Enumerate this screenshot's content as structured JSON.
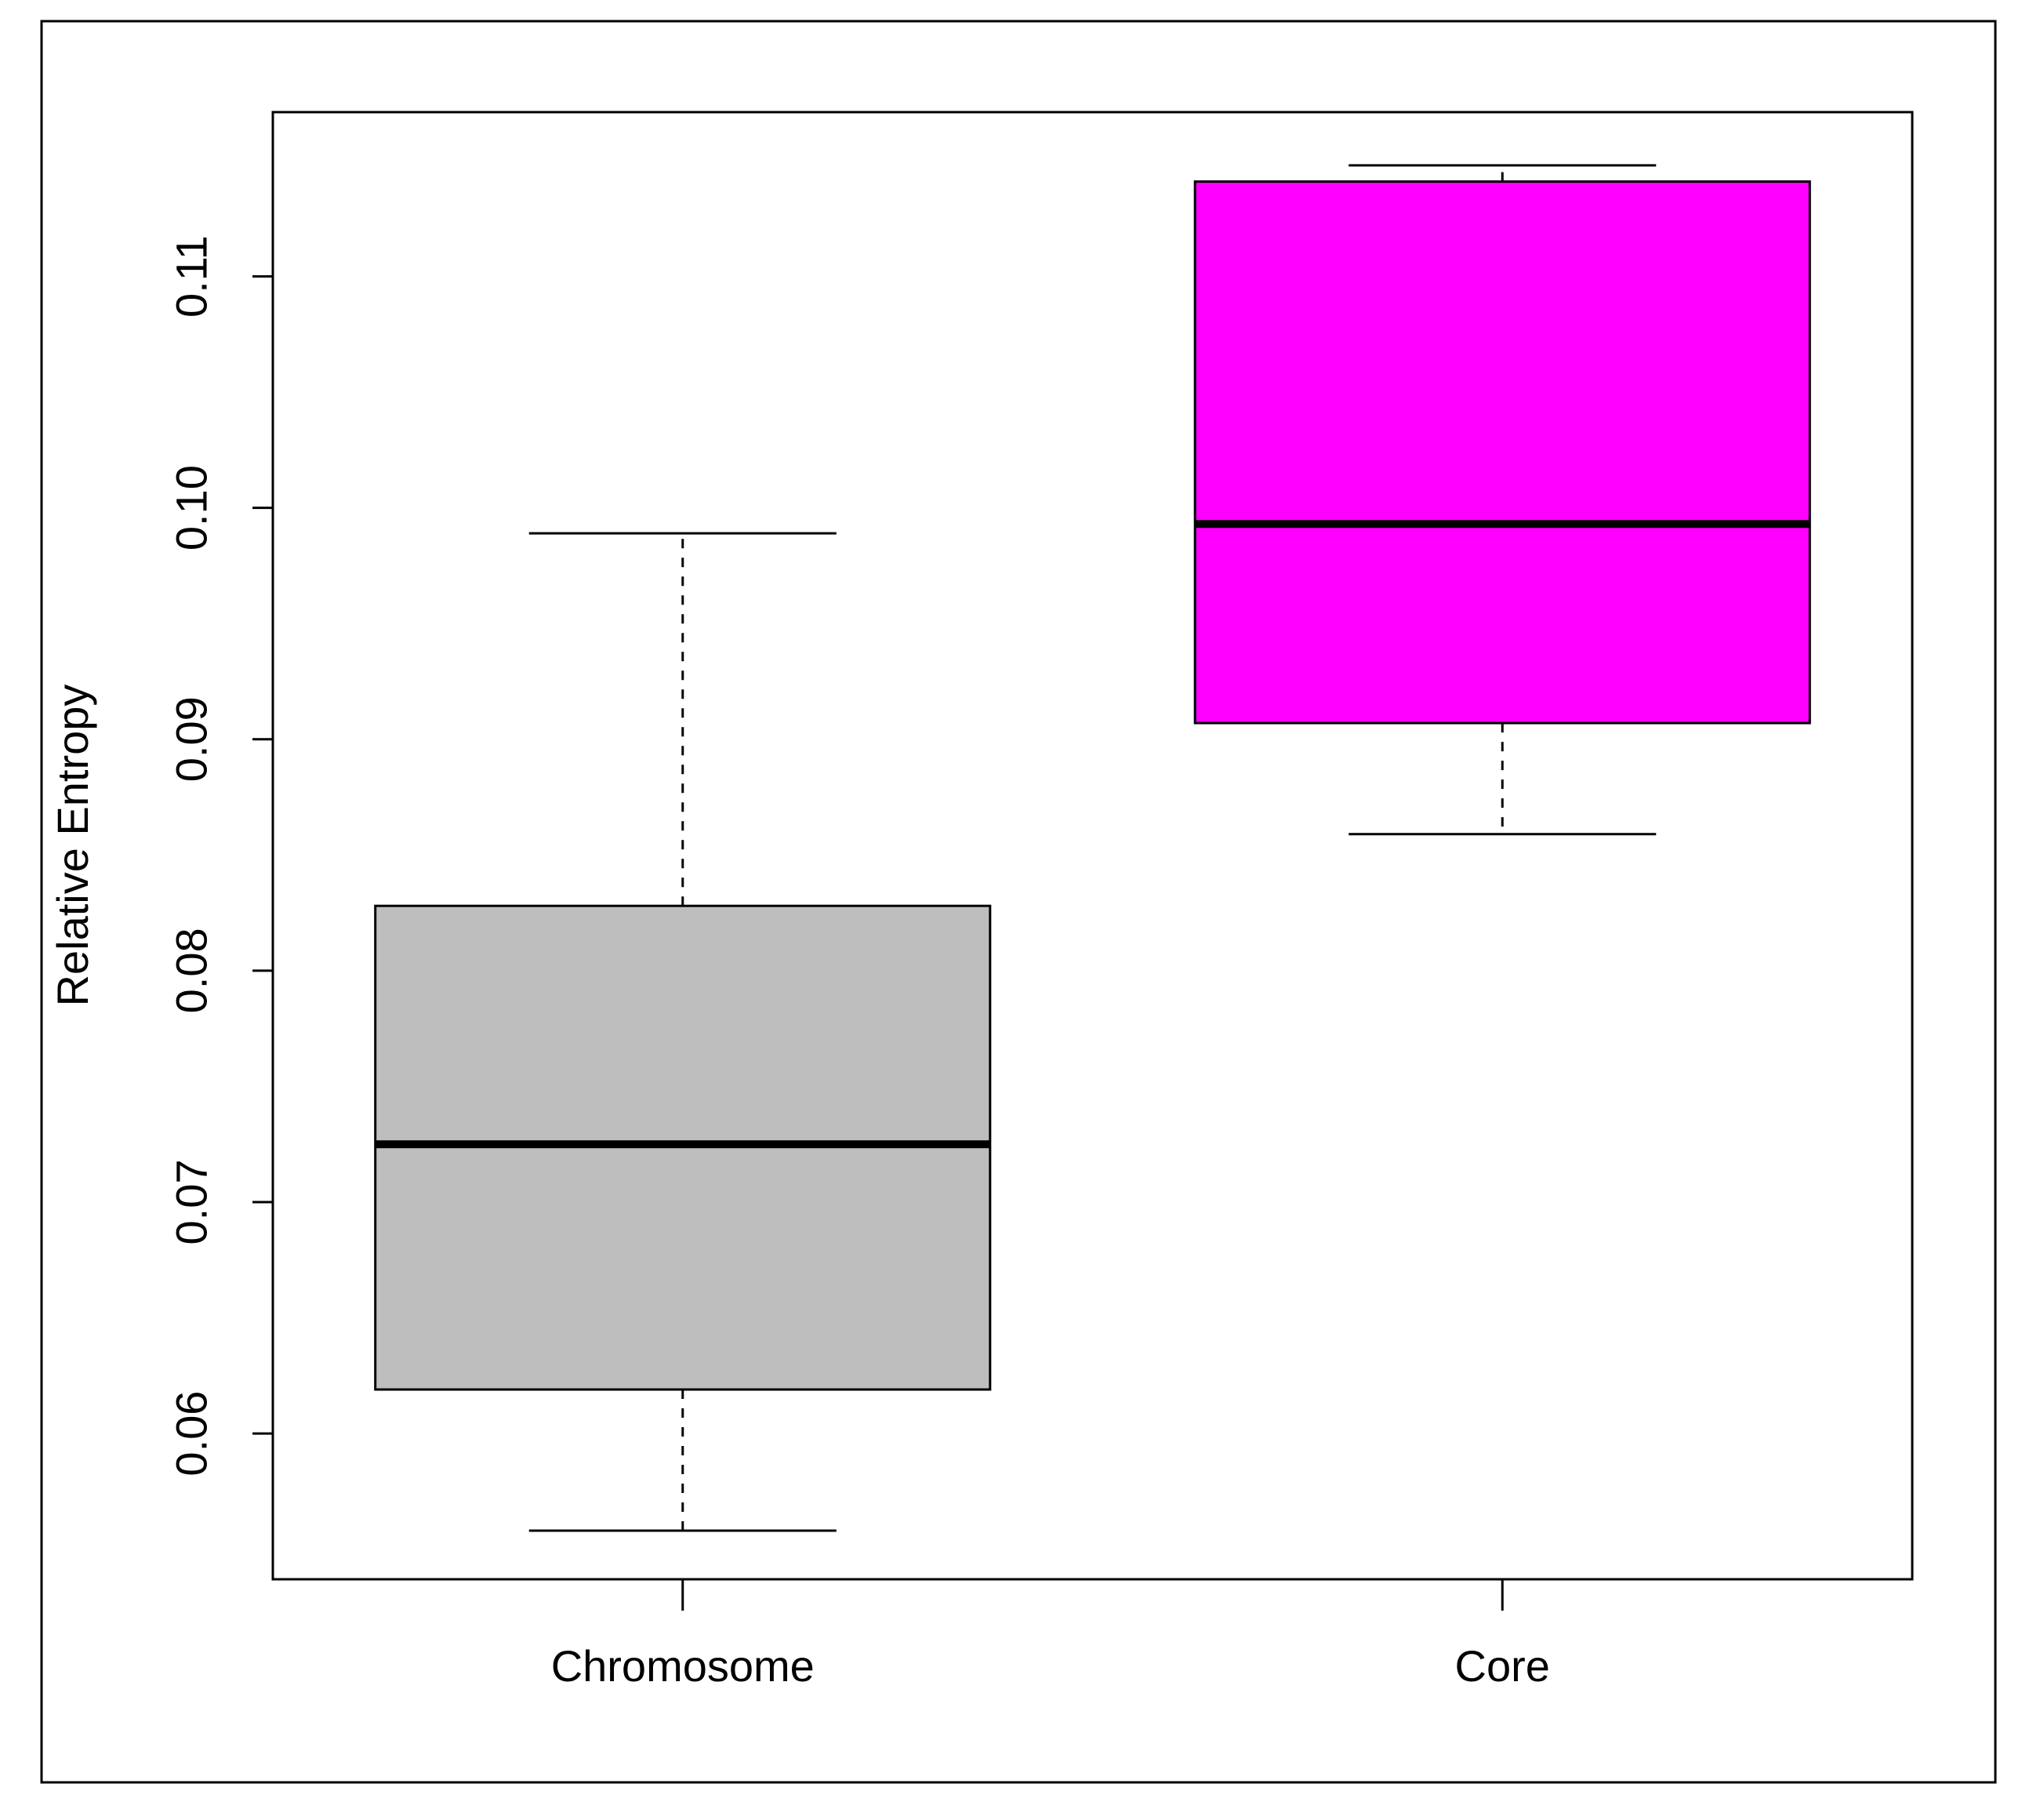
{
  "chart_data": {
    "type": "boxplot",
    "title": "",
    "xlabel": "",
    "ylabel": "Relative Entropy",
    "categories": [
      "Chromosome",
      "Core"
    ],
    "boxes": [
      {
        "category": "Chromosome",
        "whisker_low": 0.0558,
        "q1": 0.0619,
        "median": 0.0725,
        "q3": 0.0828,
        "whisker_high": 0.0989,
        "color": "#bebebe"
      },
      {
        "category": "Core",
        "whisker_low": 0.0859,
        "q1": 0.0907,
        "median": 0.0993,
        "q3": 0.1141,
        "whisker_high": 0.1148,
        "color": "#ff00ff"
      }
    ],
    "yticks": [
      0.06,
      0.07,
      0.08,
      0.09,
      0.1,
      0.11
    ],
    "ytick_labels": [
      "0.06",
      "0.07",
      "0.08",
      "0.09",
      "0.10",
      "0.11"
    ],
    "ylim": [
      0.0537,
      0.1171
    ],
    "grid": false,
    "legend": "none"
  }
}
